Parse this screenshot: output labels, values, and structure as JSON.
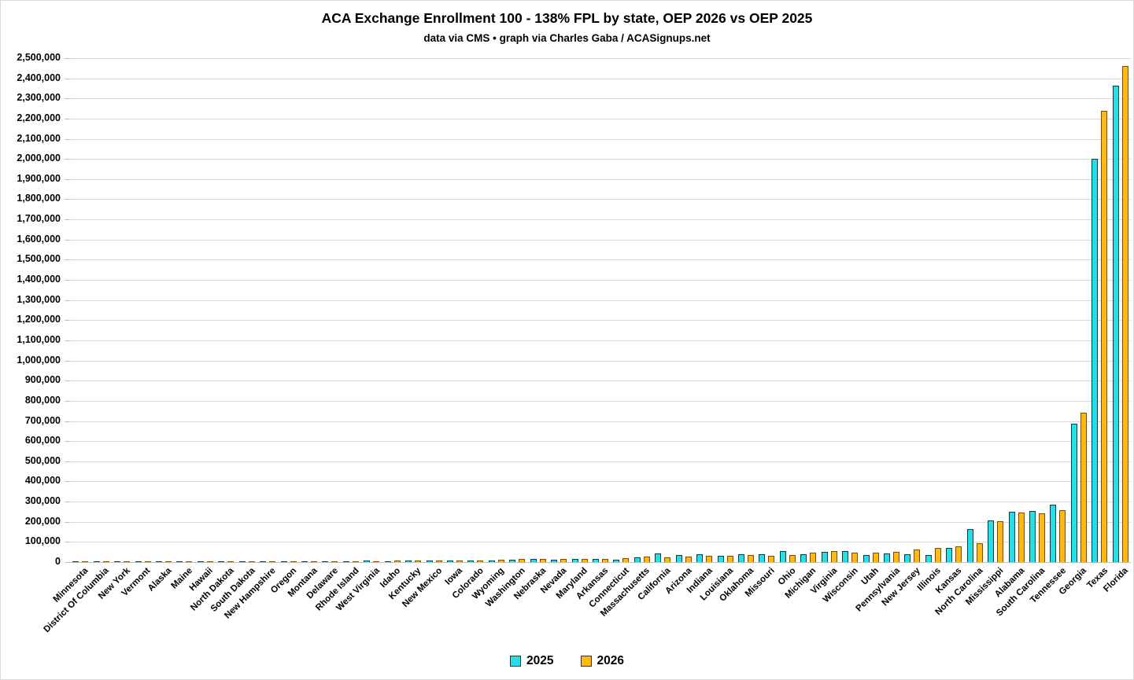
{
  "header": {
    "title": "ACA Exchange Enrollment 100 - 138% FPL by state, OEP 2026 vs OEP 2025",
    "subtitle": "data via CMS • graph via Charles Gaba / ACASignups.net"
  },
  "chart_data": {
    "type": "bar",
    "title": "ACA Exchange Enrollment 100 - 138% FPL by state, OEP 2026 vs OEP 2025",
    "subtitle": "data via CMS • graph via Charles Gaba / ACASignups.net",
    "ylim": [
      0,
      2500000
    ],
    "ytick_interval": 100000,
    "grid": true,
    "legend_position": "bottom",
    "categories": [
      "Minnesota",
      "District Of Columbia",
      "New York",
      "Vermont",
      "Alaska",
      "Maine",
      "Hawaii",
      "North Dakota",
      "South Dakota",
      "New Hampshire",
      "Oregon",
      "Montana",
      "Delaware",
      "Rhode Island",
      "West Virginia",
      "Idaho",
      "Kentucky",
      "New Mexico",
      "Iowa",
      "Colorado",
      "Wyoming",
      "Washington",
      "Nebraska",
      "Nevada",
      "Maryland",
      "Arkansas",
      "Connecticut",
      "Massachusetts",
      "California",
      "Arizona",
      "Indiana",
      "Louisiana",
      "Oklahoma",
      "Missouri",
      "Ohio",
      "Michigan",
      "Virginia",
      "Wisconsin",
      "Utah",
      "Pennsylvania",
      "New Jersey",
      "Illinois",
      "Kansas",
      "North Carolina",
      "Mississippi",
      "Alabama",
      "South Carolina",
      "Tennessee",
      "Georgia",
      "Texas",
      "Florida"
    ],
    "series": [
      {
        "name": "2025",
        "color": "#23E0E8",
        "border_color": "#123a3c",
        "values": [
          1000,
          1000,
          1500,
          1500,
          2000,
          2000,
          2000,
          2500,
          2500,
          2500,
          3000,
          3000,
          5000,
          3500,
          6000,
          5000,
          8000,
          8000,
          9000,
          9000,
          8000,
          11000,
          14000,
          13000,
          14000,
          17000,
          10000,
          25000,
          42000,
          36000,
          40000,
          31000,
          39000,
          40000,
          56000,
          39000,
          51000,
          55000,
          34000,
          42000,
          38000,
          35000,
          72000,
          165000,
          207000,
          248000,
          253000,
          286000,
          685000,
          2000000,
          2365000
        ]
      },
      {
        "name": "2026",
        "color": "#FFB914",
        "border_color": "#7c4a00",
        "values": [
          1000,
          1000,
          1500,
          1500,
          2000,
          2500,
          2500,
          2500,
          3000,
          3000,
          3000,
          3500,
          4000,
          4000,
          5000,
          6000,
          8500,
          9000,
          9000,
          9500,
          10000,
          14000,
          15000,
          17000,
          17000,
          16000,
          20000,
          29000,
          25000,
          28000,
          33000,
          32000,
          34000,
          33000,
          36000,
          46000,
          55000,
          46000,
          47000,
          52000,
          62000,
          70000,
          80000,
          95000,
          204000,
          245000,
          243000,
          256000,
          740000,
          2240000,
          2460000
        ]
      }
    ]
  }
}
